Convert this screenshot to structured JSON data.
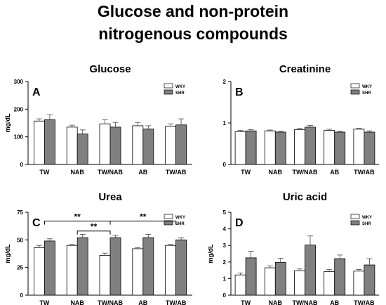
{
  "figure": {
    "title_line1": "Glucose and non-protein",
    "title_line2": "nitrogenous compounds"
  },
  "legend_entries": [
    {
      "name": "WKY",
      "color": "#ffffff"
    },
    {
      "name": "SHR",
      "color": "#808080"
    }
  ],
  "chart_data": [
    {
      "type": "bar",
      "panel_letter": "A",
      "title": "Glucose",
      "ylabel": "mg/dL",
      "xlabel": "",
      "ylim": [
        0,
        300
      ],
      "yticks": [
        0,
        100,
        200,
        300
      ],
      "legend_position": "top-right",
      "categories": [
        "TW",
        "NAB",
        "TW/NAB",
        "AB",
        "TW/AB"
      ],
      "series": [
        {
          "name": "WKY",
          "color": "#ffffff",
          "values": [
            157,
            135,
            147,
            140,
            138
          ],
          "errors": [
            8,
            7,
            15,
            12,
            9
          ]
        },
        {
          "name": "SHR",
          "color": "#808080",
          "values": [
            162,
            110,
            135,
            128,
            143
          ],
          "errors": [
            18,
            15,
            17,
            12,
            22
          ]
        }
      ],
      "significance": []
    },
    {
      "type": "bar",
      "panel_letter": "B",
      "title": "Creatinine",
      "ylabel": "",
      "xlabel": "",
      "ylim": [
        0,
        2
      ],
      "yticks": [
        0,
        1,
        2
      ],
      "legend_position": "top-right",
      "categories": [
        "TW",
        "NAB",
        "TW/NAB",
        "AB",
        "TW/AB"
      ],
      "series": [
        {
          "name": "WKY",
          "color": "#ffffff",
          "values": [
            0.79,
            0.81,
            0.84,
            0.82,
            0.85
          ],
          "errors": [
            0.03,
            0.02,
            0.03,
            0.03,
            0.02
          ]
        },
        {
          "name": "SHR",
          "color": "#808080",
          "values": [
            0.81,
            0.78,
            0.9,
            0.78,
            0.78
          ],
          "errors": [
            0.03,
            0.02,
            0.04,
            0.02,
            0.03
          ]
        }
      ],
      "significance": []
    },
    {
      "type": "bar",
      "panel_letter": "C",
      "title": "Urea",
      "ylabel": "mg/dL",
      "xlabel": "",
      "ylim": [
        0,
        75
      ],
      "yticks": [
        0,
        25,
        50,
        75
      ],
      "legend_position": "top-right",
      "categories": [
        "TW",
        "NAB",
        "TW/NAB",
        "AB",
        "TW/AB"
      ],
      "series": [
        {
          "name": "WKY",
          "color": "#ffffff",
          "values": [
            43,
            45,
            36,
            42,
            45
          ],
          "errors": [
            2,
            1,
            2,
            1,
            1
          ]
        },
        {
          "name": "SHR",
          "color": "#808080",
          "values": [
            49,
            52,
            52,
            52,
            50
          ],
          "errors": [
            2,
            3,
            2,
            3,
            2
          ]
        }
      ],
      "significance": [
        {
          "from": 0,
          "to": 2,
          "label": "**",
          "level": 67
        },
        {
          "from": 1,
          "to": 2,
          "label": "**",
          "level": 58
        },
        {
          "from": 2,
          "to": 4,
          "label": "**",
          "level": 67
        }
      ]
    },
    {
      "type": "bar",
      "panel_letter": "D",
      "title": "Uric acid",
      "ylabel": "mg/dL",
      "xlabel": "",
      "ylim": [
        0,
        5
      ],
      "yticks": [
        0,
        1,
        2,
        3,
        4,
        5
      ],
      "legend_position": "top-right",
      "categories": [
        "TW",
        "NAB",
        "TW/NAB",
        "AB",
        "TW/AB"
      ],
      "series": [
        {
          "name": "WKY",
          "color": "#ffffff",
          "values": [
            1.22,
            1.65,
            1.48,
            1.42,
            1.45
          ],
          "errors": [
            0.12,
            0.12,
            0.1,
            0.12,
            0.1
          ]
        },
        {
          "name": "SHR",
          "color": "#808080",
          "values": [
            2.25,
            1.98,
            3.02,
            2.2,
            1.82
          ],
          "errors": [
            0.4,
            0.25,
            0.55,
            0.22,
            0.38
          ]
        }
      ],
      "significance": []
    }
  ]
}
